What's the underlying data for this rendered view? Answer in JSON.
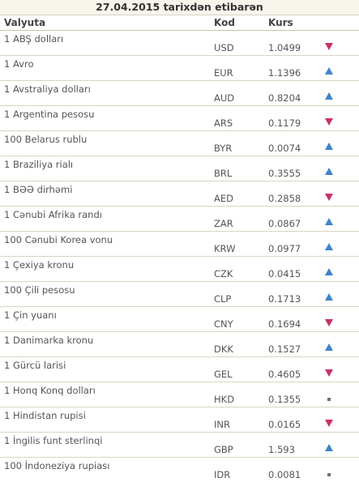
{
  "title": "27.04.2015 tarixdən etibarən",
  "columns": {
    "name": "Valyuta",
    "code": "Kod",
    "rate": "Kurs"
  },
  "colors": {
    "up": "#3e84c8",
    "down": "#c8306c",
    "neutral": "#707070"
  },
  "rows": [
    {
      "name": "1 ABŞ dolları",
      "code": "USD",
      "rate": "1.0499",
      "trend": "down"
    },
    {
      "name": "1 Avro",
      "code": "EUR",
      "rate": "1.1396",
      "trend": "up"
    },
    {
      "name": "1 Avstraliya dolları",
      "code": "AUD",
      "rate": "0.8204",
      "trend": "up"
    },
    {
      "name": "1 Argentina pesosu",
      "code": "ARS",
      "rate": "0.1179",
      "trend": "down"
    },
    {
      "name": "100 Belarus rublu",
      "code": "BYR",
      "rate": "0.0074",
      "trend": "up"
    },
    {
      "name": "1 Braziliya rialı",
      "code": "BRL",
      "rate": "0.3555",
      "trend": "up"
    },
    {
      "name": "1 BƏƏ dirhəmi",
      "code": "AED",
      "rate": "0.2858",
      "trend": "down"
    },
    {
      "name": "1 Cənubi Afrika randı",
      "code": "ZAR",
      "rate": "0.0867",
      "trend": "up"
    },
    {
      "name": "100 Cənubi Korea vonu",
      "code": "KRW",
      "rate": "0.0977",
      "trend": "up"
    },
    {
      "name": "1 Çexiya kronu",
      "code": "CZK",
      "rate": "0.0415",
      "trend": "up"
    },
    {
      "name": "100 Çili pesosu",
      "code": "CLP",
      "rate": "0.1713",
      "trend": "up"
    },
    {
      "name": "1 Çin yuanı",
      "code": "CNY",
      "rate": "0.1694",
      "trend": "down"
    },
    {
      "name": "1 Danimarka kronu",
      "code": "DKK",
      "rate": "0.1527",
      "trend": "up"
    },
    {
      "name": "1 Gürcü larisi",
      "code": "GEL",
      "rate": "0.4605",
      "trend": "down"
    },
    {
      "name": "1 Honq Konq dolları",
      "code": "HKD",
      "rate": "0.1355",
      "trend": "neutral"
    },
    {
      "name": "1 Hindistan rupisi",
      "code": "INR",
      "rate": "0.0165",
      "trend": "down"
    },
    {
      "name": "1 İngilis funt sterlinqi",
      "code": "GBP",
      "rate": "1.593",
      "trend": "up"
    },
    {
      "name": "100 İndoneziya rupiası",
      "code": "IDR",
      "rate": "0.0081",
      "trend": "neutral"
    }
  ]
}
